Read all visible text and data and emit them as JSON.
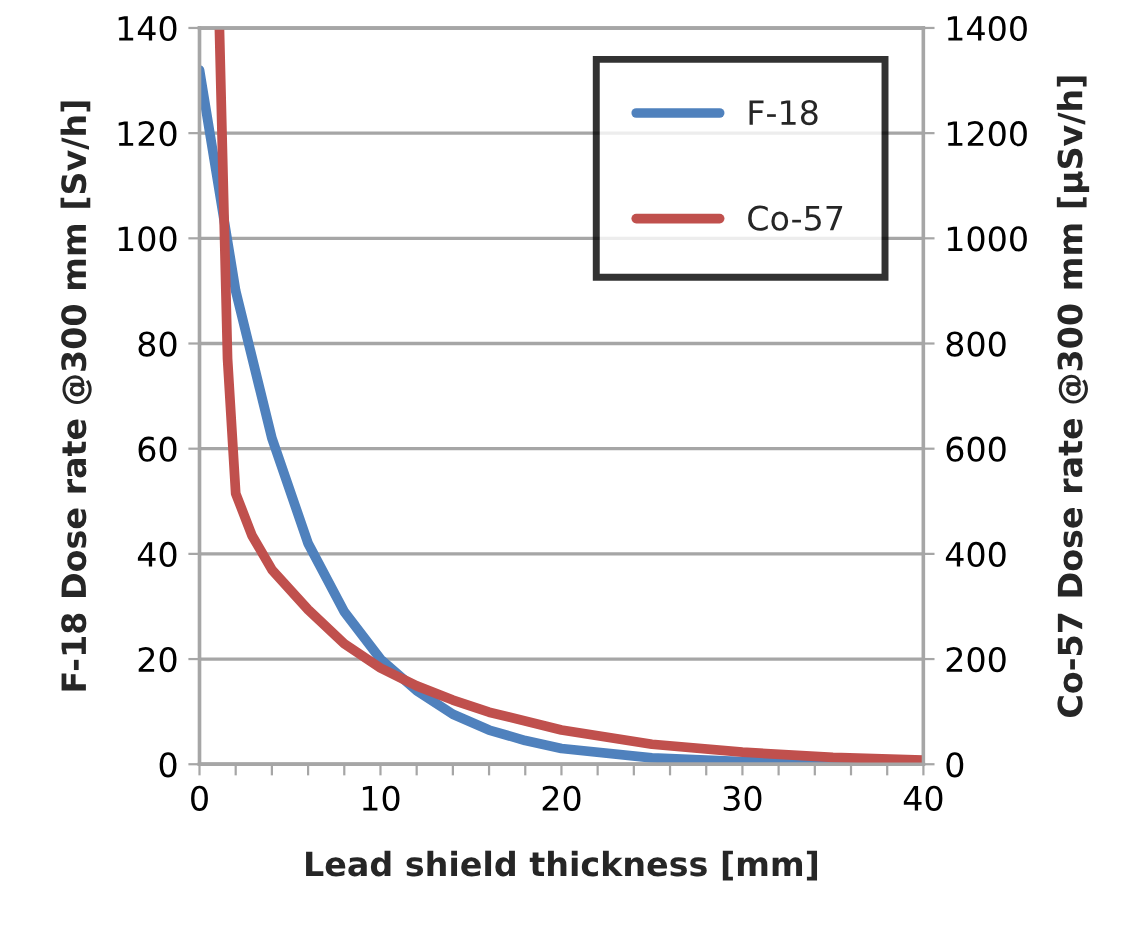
{
  "chart_data": {
    "type": "line",
    "xlabel": "Lead shield thickness [mm]",
    "ylabel": "F-18 Dose rate @300 mm [Sv/h]",
    "y2label": "Co-57 Dose rate @300 mm [µSv/h]",
    "xlim": [
      0,
      40
    ],
    "xticks": [
      0,
      {
        "value": 2,
        "label": null
      },
      {
        "value": 4,
        "label": null
      },
      {
        "value": 6,
        "label": null
      },
      {
        "value": 8,
        "label": null
      },
      10,
      {
        "value": 12,
        "label": null
      },
      {
        "value": 14,
        "label": null
      },
      {
        "value": 16,
        "label": null
      },
      {
        "value": 18,
        "label": null
      },
      20,
      {
        "value": 22,
        "label": null
      },
      {
        "value": 24,
        "label": null
      },
      {
        "value": 26,
        "label": null
      },
      {
        "value": 28,
        "label": null
      },
      30,
      {
        "value": 32,
        "label": null
      },
      {
        "value": 34,
        "label": null
      },
      {
        "value": 36,
        "label": null
      },
      {
        "value": 38,
        "label": null
      },
      40
    ],
    "ylim": [
      0,
      140
    ],
    "yticks": [
      0,
      20,
      40,
      60,
      80,
      100,
      120,
      140
    ],
    "y2lim": [
      0,
      1400
    ],
    "y2ticks": [
      0,
      200,
      400,
      600,
      800,
      1000,
      1200,
      1400
    ],
    "grid": "y",
    "legend": "top right",
    "line_style": "solid",
    "marker": "none",
    "series": [
      {
        "name": "F-18",
        "color": "#4f81bd",
        "x": [
          0,
          2,
          4,
          6,
          8,
          10,
          12,
          14,
          16,
          18,
          20,
          25,
          30,
          35,
          40
        ],
        "values": [
          132,
          90,
          62,
          42,
          29,
          20,
          14,
          9.5,
          6.5,
          4.5,
          3,
          1.2,
          0.5,
          0.2,
          0.1
        ]
      },
      {
        "name": "Co-57",
        "color": "#c0504d",
        "axis": "y2",
        "x": [
          1.1,
          1.55,
          2,
          2.9,
          4,
          6,
          8,
          10,
          12,
          14,
          16,
          20,
          25,
          30,
          35,
          40
        ],
        "values": [
          1400,
          771,
          515,
          435,
          370,
          294,
          229,
          183,
          149,
          122,
          99,
          65,
          38,
          23,
          13,
          8
        ]
      }
    ]
  }
}
